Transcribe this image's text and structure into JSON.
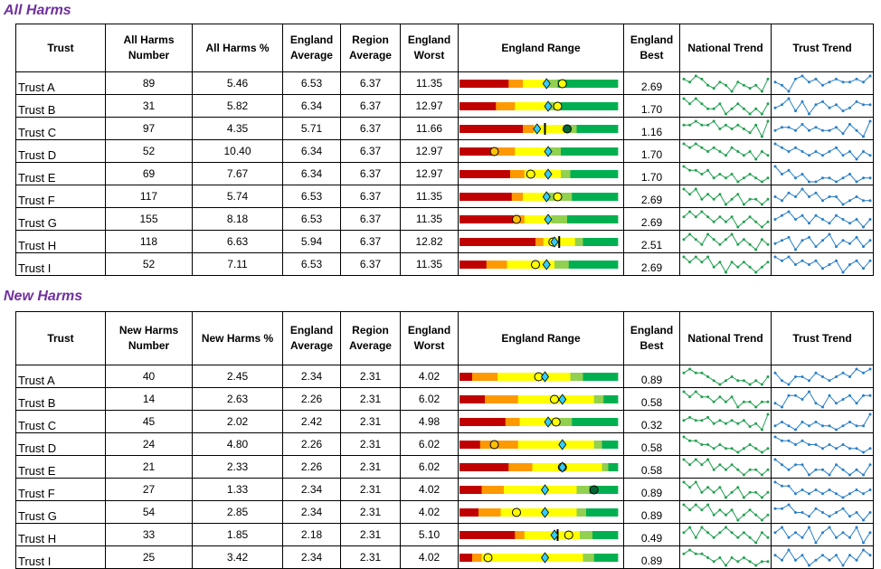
{
  "colors": {
    "title": "#7030a0",
    "band_red": "#c00000",
    "band_orange": "#ff9900",
    "band_yellow": "#ffff00",
    "band_lightgreen": "#92d050",
    "band_darkgreen": "#00b050",
    "marker_diamond": "#33ccff",
    "marker_circle_yellow": "#ffff00",
    "marker_circle_orange": "#ffc000",
    "marker_circle_green": "#006633",
    "national_trend": "#22a050",
    "trust_trend": "#2a7fc8"
  },
  "sections": [
    {
      "title": "All Harms",
      "headers": {
        "trust": "Trust",
        "number": "All Harms Number",
        "percent": "All Harms %",
        "eng_avg": "England Average",
        "reg_avg": "Region Average",
        "eng_worst": "England Worst",
        "range": "England Range",
        "eng_best": "England Best",
        "national_trend": "National Trend",
        "trust_trend": "Trust Trend"
      },
      "rows": [
        {
          "trust": "Trust A",
          "number": "89",
          "percent": "5.46",
          "eng_avg": "6.53",
          "reg_avg": "6.37",
          "eng_worst": "11.35",
          "eng_best": "2.69",
          "bands": [
            0.31,
            0.09,
            0.15,
            0.07,
            0.38
          ],
          "diamond": 0.55,
          "line": null,
          "circle": 0.65,
          "circle_color": "yellow",
          "national_trend": [
            5,
            4,
            6,
            5,
            3,
            2,
            4,
            3,
            1,
            4,
            3,
            2,
            3,
            1,
            5
          ],
          "trust_trend": [
            4,
            3,
            1,
            5,
            6,
            4,
            5,
            3,
            4,
            5,
            4,
            4,
            5,
            4,
            6
          ]
        },
        {
          "trust": "Trust B",
          "number": "31",
          "percent": "5.82",
          "eng_avg": "6.34",
          "reg_avg": "6.37",
          "eng_worst": "12.97",
          "eng_best": "1.70",
          "bands": [
            0.23,
            0.12,
            0.22,
            0.07,
            0.36
          ],
          "diamond": 0.56,
          "line": null,
          "circle": 0.62,
          "circle_color": "yellow",
          "national_trend": [
            5,
            4,
            5,
            4,
            3,
            3,
            4,
            2,
            3,
            4,
            3,
            2,
            3,
            2,
            4
          ],
          "trust_trend": [
            3,
            4,
            6,
            2,
            5,
            1,
            4,
            5,
            3,
            4,
            2,
            3,
            5,
            4,
            4
          ]
        },
        {
          "trust": "Trust C",
          "number": "97",
          "percent": "4.35",
          "eng_avg": "5.71",
          "reg_avg": "6.37",
          "eng_worst": "11.66",
          "eng_best": "1.16",
          "bands": [
            0.4,
            0.07,
            0.22,
            0.05,
            0.26
          ],
          "diamond": 0.49,
          "line": 0.54,
          "circle": 0.68,
          "circle_color": "green",
          "national_trend": [
            4,
            4,
            5,
            4,
            4,
            5,
            3,
            4,
            3,
            4,
            3,
            2,
            4,
            1,
            5
          ],
          "trust_trend": [
            3,
            4,
            4,
            3,
            5,
            3,
            4,
            3,
            3,
            4,
            2,
            5,
            3,
            1,
            6
          ]
        },
        {
          "trust": "Trust D",
          "number": "52",
          "percent": "10.40",
          "eng_avg": "6.34",
          "reg_avg": "6.37",
          "eng_worst": "12.97",
          "eng_best": "1.70",
          "bands": [
            0.23,
            0.12,
            0.22,
            0.07,
            0.36
          ],
          "diamond": 0.56,
          "line": null,
          "circle": 0.22,
          "circle_color": "orange",
          "national_trend": [
            5,
            4,
            5,
            4,
            3,
            4,
            3,
            2,
            4,
            3,
            2,
            3,
            1,
            3,
            2
          ],
          "trust_trend": [
            6,
            5,
            4,
            5,
            4,
            3,
            4,
            3,
            4,
            5,
            3,
            4,
            2,
            4,
            3
          ]
        },
        {
          "trust": "Trust E",
          "number": "69",
          "percent": "7.67",
          "eng_avg": "6.34",
          "reg_avg": "6.37",
          "eng_worst": "12.97",
          "eng_best": "1.70",
          "bands": [
            0.32,
            0.09,
            0.23,
            0.06,
            0.3
          ],
          "diamond": 0.56,
          "line": null,
          "circle": 0.45,
          "circle_color": "yellow",
          "national_trend": [
            6,
            5,
            5,
            4,
            5,
            3,
            4,
            3,
            4,
            2,
            3,
            4,
            3,
            2,
            3
          ],
          "trust_trend": [
            6,
            4,
            5,
            3,
            4,
            2,
            2,
            3,
            3,
            2,
            3,
            4,
            2,
            3,
            3
          ]
        },
        {
          "trust": "Trust F",
          "number": "117",
          "percent": "5.74",
          "eng_avg": "6.53",
          "reg_avg": "6.37",
          "eng_worst": "11.35",
          "eng_best": "2.69",
          "bands": [
            0.33,
            0.07,
            0.15,
            0.16,
            0.29
          ],
          "diamond": 0.55,
          "line": null,
          "circle": 0.62,
          "circle_color": "yellow",
          "national_trend": [
            5,
            4,
            5,
            3,
            4,
            3,
            4,
            2,
            3,
            4,
            2,
            3,
            3,
            2,
            3
          ],
          "trust_trend": [
            4,
            3,
            5,
            4,
            6,
            4,
            5,
            3,
            4,
            4,
            2,
            3,
            4,
            3,
            3
          ]
        },
        {
          "trust": "Trust G",
          "number": "155",
          "percent": "8.18",
          "eng_avg": "6.53",
          "reg_avg": "6.37",
          "eng_worst": "11.35",
          "eng_best": "2.69",
          "bands": [
            0.34,
            0.07,
            0.17,
            0.1,
            0.32
          ],
          "diamond": 0.56,
          "line": null,
          "circle": 0.36,
          "circle_color": "orange",
          "national_trend": [
            4,
            5,
            4,
            5,
            4,
            3,
            4,
            3,
            4,
            2,
            3,
            4,
            3,
            2,
            3
          ],
          "trust_trend": [
            4,
            5,
            6,
            4,
            5,
            3,
            5,
            4,
            3,
            5,
            4,
            3,
            4,
            2,
            4
          ]
        },
        {
          "trust": "Trust H",
          "number": "118",
          "percent": "6.63",
          "eng_avg": "5.94",
          "reg_avg": "6.37",
          "eng_worst": "12.82",
          "eng_best": "2.51",
          "bands": [
            0.48,
            0.05,
            0.2,
            0.05,
            0.22
          ],
          "diamond": 0.6,
          "line": 0.63,
          "circle": 0.59,
          "circle_color": "yellow",
          "national_trend": [
            4,
            5,
            4,
            3,
            5,
            4,
            3,
            4,
            5,
            3,
            4,
            3,
            2,
            4,
            3
          ],
          "trust_trend": [
            3,
            4,
            5,
            1,
            4,
            5,
            2,
            4,
            6,
            2,
            4,
            3,
            5,
            2,
            4
          ]
        },
        {
          "trust": "Trust I",
          "number": "52",
          "percent": "7.11",
          "eng_avg": "6.53",
          "reg_avg": "6.37",
          "eng_worst": "11.35",
          "eng_best": "2.69",
          "bands": [
            0.17,
            0.13,
            0.3,
            0.09,
            0.31
          ],
          "diamond": 0.55,
          "line": null,
          "circle": 0.48,
          "circle_color": "yellow",
          "national_trend": [
            5,
            4,
            5,
            4,
            5,
            3,
            4,
            2,
            4,
            3,
            4,
            3,
            2,
            3,
            4
          ],
          "trust_trend": [
            5,
            4,
            5,
            3,
            4,
            3,
            4,
            2,
            3,
            4,
            1,
            3,
            4,
            2,
            4
          ]
        }
      ]
    },
    {
      "title": "New Harms",
      "headers": {
        "trust": "Trust",
        "number": "New Harms Number",
        "percent": "New Harms %",
        "eng_avg": "England Average",
        "reg_avg": "Region Average",
        "eng_worst": "England Worst",
        "range": "England Range",
        "eng_best": "England Best",
        "national_trend": "National Trend",
        "trust_trend": "Trust Trend"
      },
      "rows": [
        {
          "trust": "Trust A",
          "number": "40",
          "percent": "2.45",
          "eng_avg": "2.34",
          "reg_avg": "2.31",
          "eng_worst": "4.02",
          "eng_best": "0.89",
          "bands": [
            0.08,
            0.16,
            0.46,
            0.08,
            0.22
          ],
          "diamond": 0.54,
          "line": null,
          "circle": 0.5,
          "circle_color": "yellow",
          "national_trend": [
            5,
            6,
            5,
            5,
            4,
            3,
            2,
            3,
            4,
            3,
            3,
            2,
            3,
            2,
            4
          ],
          "trust_trend": [
            5,
            3,
            2,
            4,
            4,
            3,
            5,
            4,
            3,
            4,
            5,
            4,
            6,
            5,
            6
          ]
        },
        {
          "trust": "Trust B",
          "number": "14",
          "percent": "2.63",
          "eng_avg": "2.26",
          "reg_avg": "2.31",
          "eng_worst": "6.02",
          "eng_best": "0.58",
          "bands": [
            0.16,
            0.21,
            0.48,
            0.06,
            0.09
          ],
          "diamond": 0.65,
          "line": null,
          "circle": 0.6,
          "circle_color": "yellow",
          "national_trend": [
            5,
            4,
            5,
            4,
            4,
            3,
            4,
            3,
            4,
            2,
            3,
            3,
            2,
            3,
            3
          ],
          "trust_trend": [
            3,
            2,
            5,
            5,
            4,
            6,
            3,
            2,
            5,
            3,
            4,
            5,
            3,
            5,
            5
          ]
        },
        {
          "trust": "Trust C",
          "number": "45",
          "percent": "2.02",
          "eng_avg": "2.42",
          "reg_avg": "2.31",
          "eng_worst": "4.98",
          "eng_best": "0.32",
          "bands": [
            0.29,
            0.09,
            0.23,
            0.1,
            0.29
          ],
          "diamond": 0.56,
          "line": null,
          "circle": 0.61,
          "circle_color": "yellow",
          "national_trend": [
            4,
            5,
            4,
            4,
            5,
            3,
            4,
            3,
            4,
            3,
            4,
            2,
            3,
            1,
            6
          ],
          "trust_trend": [
            3,
            4,
            3,
            2,
            4,
            3,
            4,
            3,
            3,
            2,
            3,
            4,
            3,
            3,
            6
          ]
        },
        {
          "trust": "Trust D",
          "number": "24",
          "percent": "4.80",
          "eng_avg": "2.26",
          "reg_avg": "2.31",
          "eng_worst": "6.02",
          "eng_best": "0.58",
          "bands": [
            0.13,
            0.24,
            0.48,
            0.05,
            0.1
          ],
          "diamond": 0.65,
          "line": null,
          "circle": 0.22,
          "circle_color": "orange",
          "national_trend": [
            6,
            5,
            5,
            4,
            4,
            3,
            4,
            3,
            3,
            2,
            3,
            4,
            3,
            2,
            3
          ],
          "trust_trend": [
            6,
            5,
            5,
            4,
            5,
            4,
            4,
            3,
            4,
            3,
            4,
            3,
            3,
            2,
            3
          ]
        },
        {
          "trust": "Trust E",
          "number": "21",
          "percent": "2.33",
          "eng_avg": "2.26",
          "reg_avg": "2.31",
          "eng_worst": "6.02",
          "eng_best": "0.58",
          "bands": [
            0.31,
            0.15,
            0.44,
            0.04,
            0.06
          ],
          "diamond": 0.65,
          "line": null,
          "circle": 0.65,
          "circle_color": "yellow",
          "national_trend": [
            5,
            4,
            5,
            4,
            5,
            3,
            4,
            3,
            4,
            3,
            2,
            3,
            3,
            2,
            3
          ],
          "trust_trend": [
            5,
            4,
            3,
            4,
            4,
            2,
            3,
            3,
            2,
            4,
            3,
            2,
            3,
            2,
            4
          ]
        },
        {
          "trust": "Trust F",
          "number": "27",
          "percent": "1.33",
          "eng_avg": "2.34",
          "reg_avg": "2.31",
          "eng_worst": "4.02",
          "eng_best": "0.89",
          "bands": [
            0.14,
            0.14,
            0.46,
            0.08,
            0.18
          ],
          "diamond": 0.54,
          "line": null,
          "circle": 0.85,
          "circle_color": "green",
          "national_trend": [
            5,
            4,
            5,
            3,
            4,
            3,
            4,
            2,
            3,
            4,
            2,
            3,
            3,
            2,
            3
          ],
          "trust_trend": [
            6,
            5,
            5,
            3,
            4,
            3,
            4,
            3,
            4,
            3,
            2,
            3,
            4,
            3,
            4
          ]
        },
        {
          "trust": "Trust G",
          "number": "54",
          "percent": "2.85",
          "eng_avg": "2.34",
          "reg_avg": "2.31",
          "eng_worst": "4.02",
          "eng_best": "0.89",
          "bands": [
            0.12,
            0.14,
            0.48,
            0.06,
            0.2
          ],
          "diamond": 0.54,
          "line": null,
          "circle": 0.36,
          "circle_color": "yellow",
          "national_trend": [
            5,
            4,
            5,
            4,
            5,
            3,
            4,
            3,
            4,
            2,
            3,
            4,
            3,
            2,
            3
          ],
          "trust_trend": [
            5,
            5,
            6,
            4,
            4,
            3,
            5,
            4,
            3,
            4,
            5,
            3,
            4,
            2,
            4
          ]
        },
        {
          "trust": "Trust H",
          "number": "33",
          "percent": "1.85",
          "eng_avg": "2.18",
          "reg_avg": "2.31",
          "eng_worst": "5.10",
          "eng_best": "0.49",
          "bands": [
            0.35,
            0.06,
            0.35,
            0.08,
            0.16
          ],
          "diamond": 0.6,
          "line": 0.62,
          "circle": 0.69,
          "circle_color": "yellow",
          "national_trend": [
            4,
            5,
            3,
            5,
            4,
            3,
            4,
            5,
            4,
            3,
            4,
            3,
            2,
            4,
            3
          ],
          "trust_trend": [
            4,
            5,
            3,
            4,
            3,
            5,
            2,
            4,
            5,
            3,
            4,
            3,
            5,
            2,
            4
          ]
        },
        {
          "trust": "Trust I",
          "number": "25",
          "percent": "3.42",
          "eng_avg": "2.34",
          "reg_avg": "2.31",
          "eng_worst": "4.02",
          "eng_best": "0.89",
          "bands": [
            0.08,
            0.06,
            0.64,
            0.07,
            0.15
          ],
          "diamond": 0.54,
          "line": null,
          "circle": 0.18,
          "circle_color": "yellow",
          "national_trend": [
            5,
            6,
            5,
            5,
            4,
            3,
            4,
            2,
            4,
            3,
            4,
            3,
            2,
            3,
            3
          ],
          "trust_trend": [
            4,
            3,
            5,
            3,
            4,
            2,
            3,
            4,
            3,
            4,
            2,
            4,
            3,
            5,
            4
          ]
        }
      ]
    }
  ]
}
